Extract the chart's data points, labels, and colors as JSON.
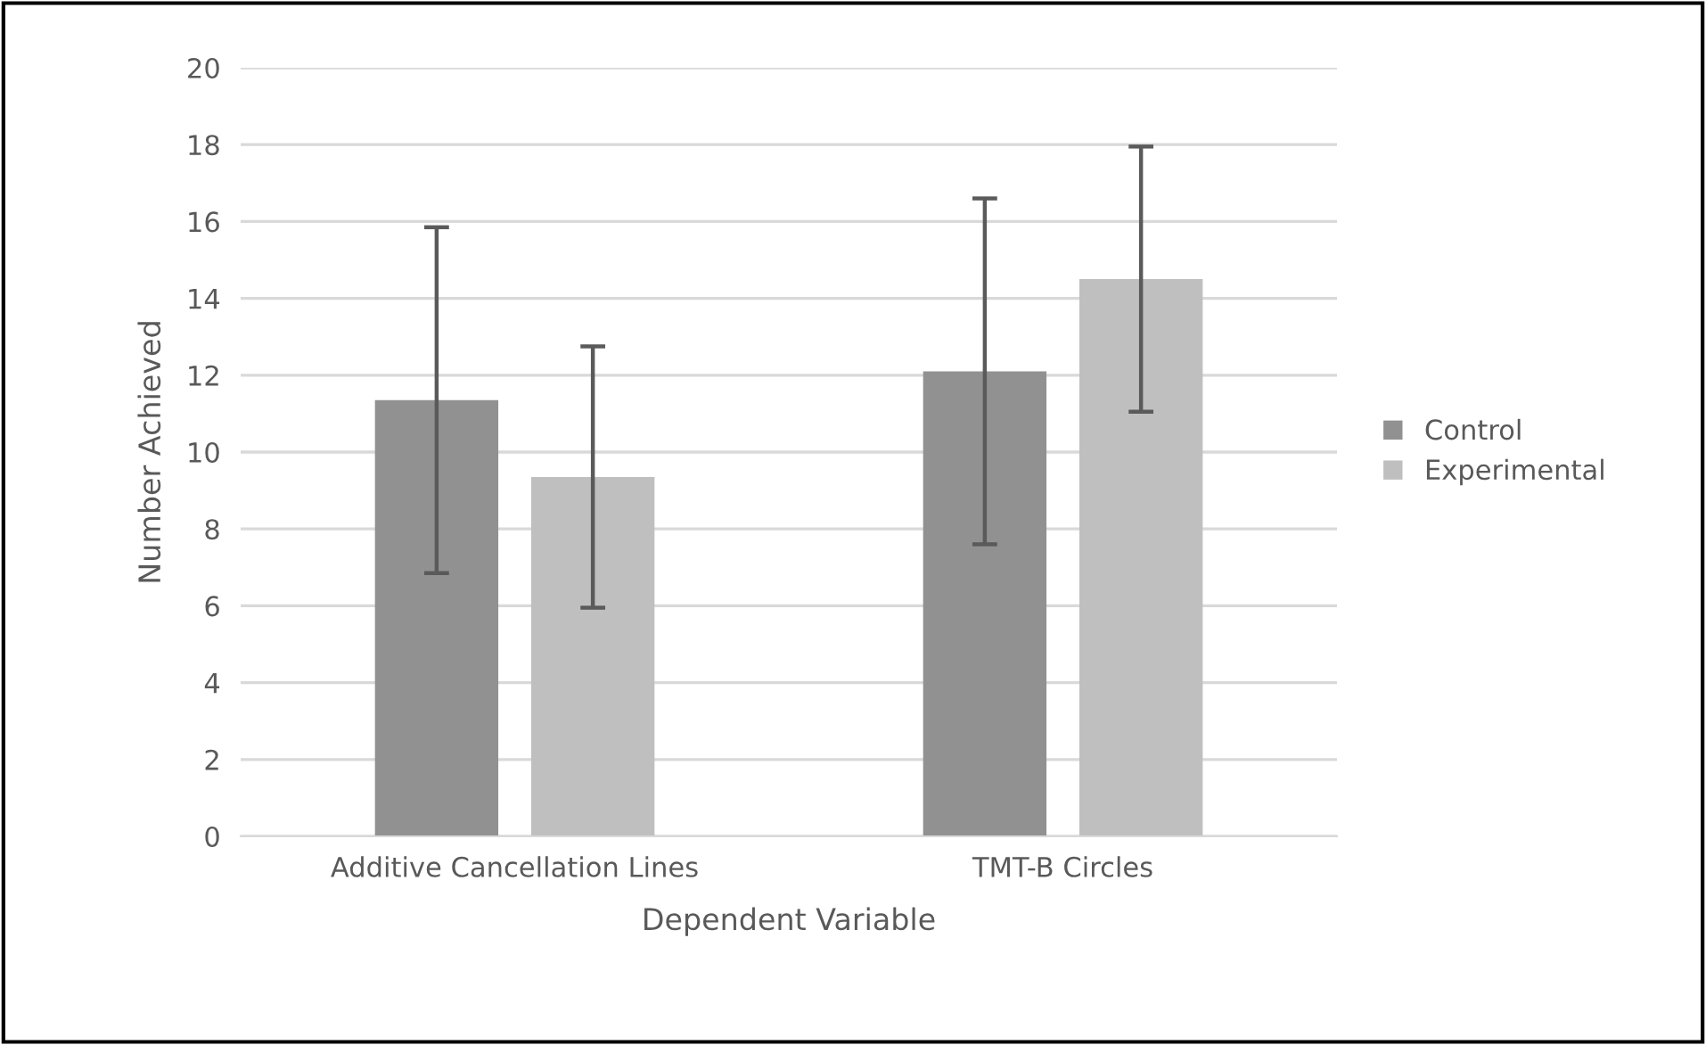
{
  "chart_data": {
    "type": "bar",
    "xlabel": "Dependent Variable",
    "ylabel": "Number Achieved",
    "categories": [
      "Additive Cancellation Lines",
      "TMT-B Circles"
    ],
    "series": [
      {
        "name": "Control",
        "color": "#919191",
        "values": [
          11.35,
          12.1
        ],
        "errors": [
          4.5,
          4.5
        ]
      },
      {
        "name": "Experimental",
        "color": "#bfbfbf",
        "values": [
          9.35,
          14.5
        ],
        "errors": [
          3.4,
          3.45
        ]
      }
    ],
    "ylim": [
      0,
      20
    ],
    "yticks": [
      0,
      2,
      4,
      6,
      8,
      10,
      12,
      14,
      16,
      18,
      20
    ],
    "grid": "y",
    "legend": "right"
  }
}
